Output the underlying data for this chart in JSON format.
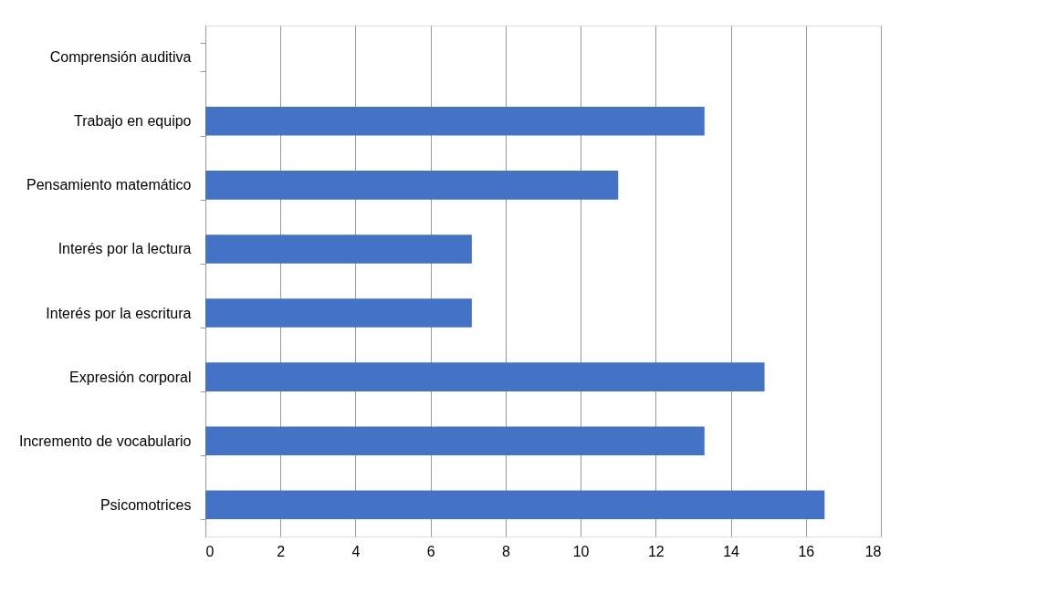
{
  "chart_data": {
    "type": "bar",
    "orientation": "horizontal",
    "categories": [
      "Comprensión auditiva",
      "Trabajo en equipo",
      "Pensamiento matemático",
      "Interés por la lectura",
      "Interés por la escritura",
      "Expresión corporal",
      "Incremento de vocabulario",
      "Psicomotrices"
    ],
    "values": [
      0,
      13.3,
      11.0,
      7.1,
      7.1,
      14.9,
      13.3,
      16.5
    ],
    "color": "#4472c4",
    "xlim": [
      0,
      18
    ],
    "xticks": [
      0,
      2,
      4,
      6,
      8,
      10,
      12,
      14,
      16,
      18
    ],
    "grid": "x"
  }
}
